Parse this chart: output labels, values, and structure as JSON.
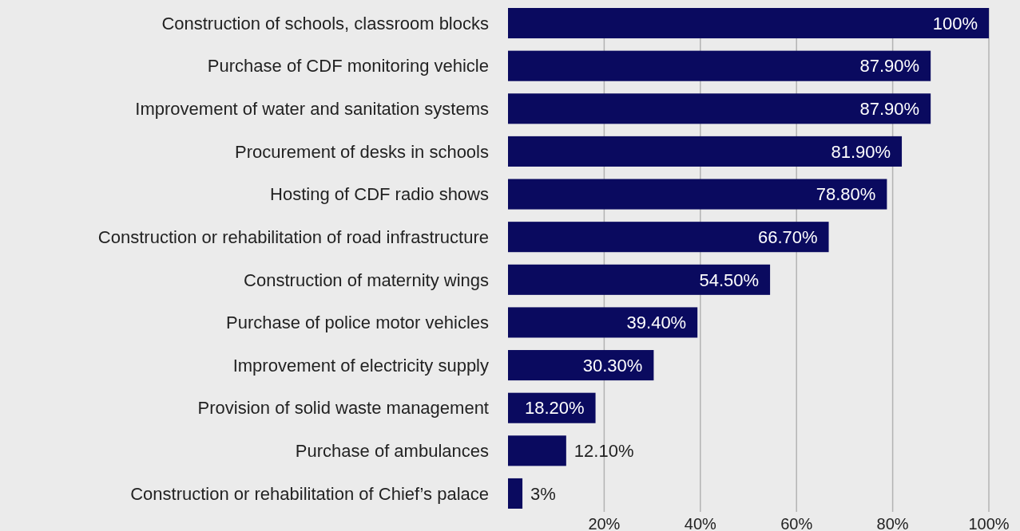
{
  "chart_data": {
    "type": "bar",
    "orientation": "horizontal",
    "categories": [
      "Construction of schools, classroom blocks",
      "Purchase of CDF monitoring vehicle",
      "Improvement of water and sanitation systems",
      "Procurement of desks in schools",
      "Hosting of CDF radio shows",
      "Construction or rehabilitation of road infrastructure",
      "Construction of maternity wings",
      "Purchase of police motor vehicles",
      "Improvement of electricity supply",
      "Provision of solid waste management",
      "Purchase of ambulances",
      "Construction or rehabilitation of Chief’s palace"
    ],
    "values": [
      100,
      87.9,
      87.9,
      81.9,
      78.8,
      66.7,
      54.5,
      39.4,
      30.3,
      18.2,
      12.1,
      3
    ],
    "value_labels": [
      "100%",
      "87.90%",
      "87.90%",
      "81.90%",
      "78.80%",
      "66.70%",
      "54.50%",
      "39.40%",
      "30.30%",
      "18.20%",
      "12.10%",
      "3%"
    ],
    "color": "#0a0a5f",
    "xlim": [
      0,
      100
    ],
    "xticks": [
      {
        "value": 20,
        "label": "20%"
      },
      {
        "value": 40,
        "label": "40%"
      },
      {
        "value": 60,
        "label": "60%"
      },
      {
        "value": 80,
        "label": "80%"
      },
      {
        "value": 100,
        "label": "100%"
      }
    ],
    "grid": "x"
  }
}
